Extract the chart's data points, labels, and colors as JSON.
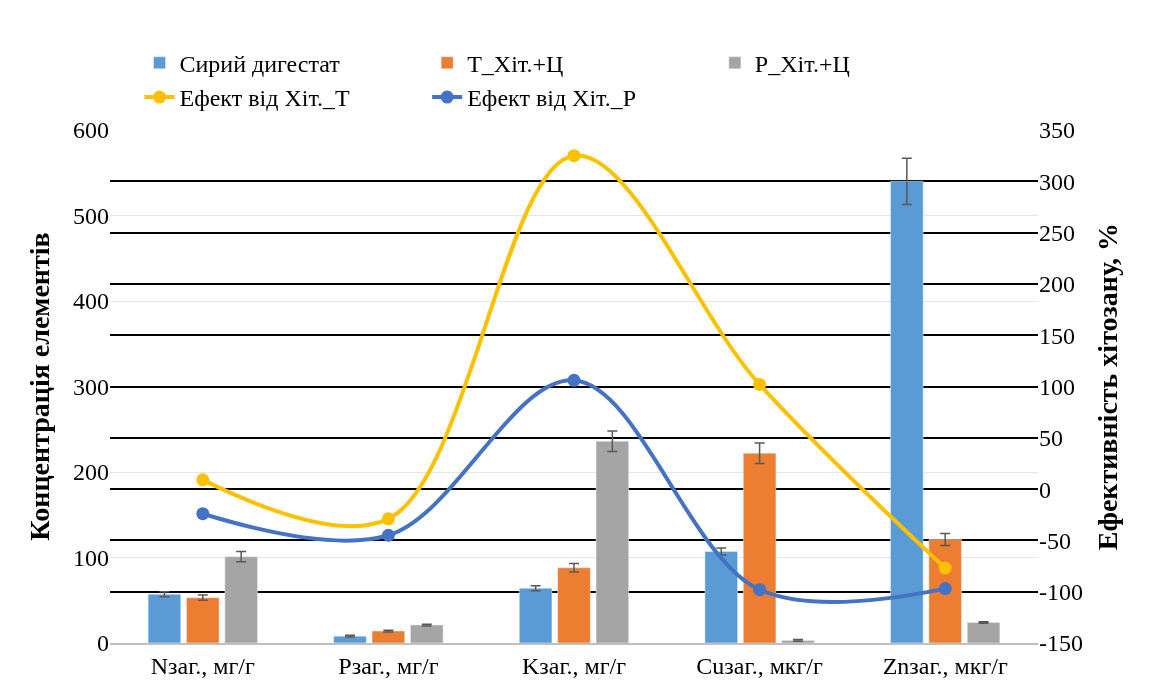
{
  "chart_data": {
    "type": "bar",
    "ylabel": "Концентрація елементів",
    "y2label": "Ефективність хітозану, %",
    "categories": [
      "Nзаг., мг/г",
      "Pзаг., мг/г",
      "Kзаг., мг/г",
      "Cuзаг., мкг/г",
      "Znзаг., мкг/г"
    ],
    "series": [
      {
        "name": "Сирий дигестат",
        "color": "#5b9bd5",
        "values": [
          57,
          8,
          64,
          107,
          540
        ],
        "errors": [
          3,
          1,
          3,
          4,
          27
        ]
      },
      {
        "name": "Т_Хіт.+Ц",
        "color": "#ed7d31",
        "values": [
          53,
          14,
          88,
          222,
          121
        ],
        "errors": [
          3,
          1,
          5,
          12,
          7
        ]
      },
      {
        "name": "Р_Хіт.+Ц",
        "color": "#a5a5a5",
        "values": [
          101,
          21,
          236,
          3,
          24
        ],
        "errors": [
          6,
          1,
          12,
          1,
          1
        ]
      },
      {
        "name": "Ефект від Хіт._Т",
        "type": "line",
        "axis": "y2",
        "color": "#ffc000",
        "values": [
          9,
          -29,
          325,
          102,
          -77
        ]
      },
      {
        "name": "Ефект від Хіт._Р",
        "type": "line",
        "axis": "y2",
        "color": "#4472c4",
        "values": [
          -24,
          -45,
          106,
          -98,
          -97
        ]
      }
    ],
    "ylim": [
      0,
      600
    ],
    "yticks": [
      0,
      100,
      200,
      300,
      400,
      500,
      600
    ],
    "y2lim": [
      -150,
      350
    ],
    "y2ticks": [
      -150,
      -100,
      -50,
      0,
      50,
      100,
      150,
      200,
      250,
      300,
      350
    ],
    "grid": true,
    "legend": "top",
    "marker": "circle",
    "line_style": "solid"
  }
}
